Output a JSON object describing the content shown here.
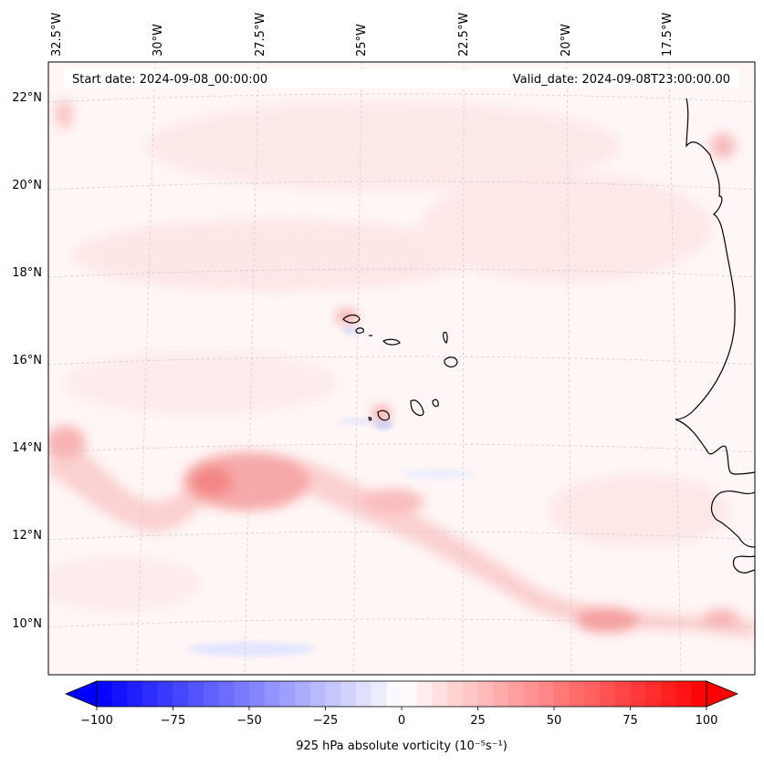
{
  "map": {
    "start_label": "Start date: 2024-09-08_00:00:00",
    "valid_label": "Valid_date: 2024-09-08T23:00:00.00",
    "lon_labels": [
      "32.5°W",
      "30°W",
      "27.5°W",
      "25°W",
      "22.5°W",
      "20°W",
      "17.5°W"
    ],
    "lat_labels": [
      "22°N",
      "20°N",
      "18°N",
      "16°N",
      "14°N",
      "12°N",
      "10°N"
    ],
    "colors": {
      "coast": "#000000",
      "grid": "#cccccc",
      "weak_positive": "#fde7e7",
      "moderate_positive": "#f9a9a9",
      "strong_positive": "#f37272",
      "negative": "#dfe4ff"
    }
  },
  "colorbar": {
    "label": "925 hPa absolute vorticity (10⁻⁵s⁻¹)",
    "ticks": [
      "−100",
      "−75",
      "−50",
      "−25",
      "0",
      "25",
      "50",
      "75",
      "100"
    ],
    "range": [
      -100,
      100
    ],
    "colormap": "bwr",
    "extend": "both"
  }
}
